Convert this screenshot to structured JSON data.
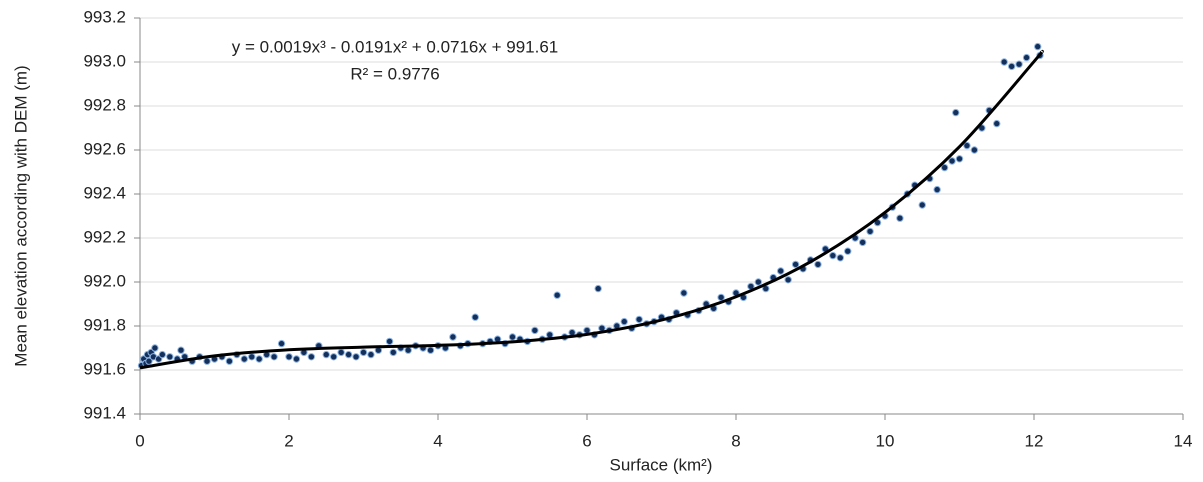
{
  "chart_data": {
    "type": "scatter",
    "xlabel": "Surface (km²)",
    "ylabel": "Mean elevation according with DEM (m)",
    "annotations": [
      "y = 0.0019x³ - 0.0191x² + 0.0716x + 991.61",
      "R² = 0.9776"
    ],
    "xlim": [
      0,
      14
    ],
    "xticks": [
      0,
      2,
      4,
      6,
      8,
      10,
      12,
      14
    ],
    "ylim": [
      991.4,
      993.2
    ],
    "yticks": [
      991.4,
      991.6,
      991.8,
      {
        "value": 992,
        "label": "992.0"
      },
      992.2,
      992.4,
      992.6,
      992.8,
      {
        "value": 993,
        "label": "993.0"
      },
      993.2
    ],
    "grid": true,
    "series": [
      {
        "type": "scatter",
        "color": "#14305a",
        "edgecolor": "#8db4e2",
        "x": [
          0.02,
          0.05,
          0.08,
          0.1,
          0.12,
          0.15,
          0.18,
          0.2,
          0.25,
          0.3,
          0.4,
          0.5,
          0.55,
          0.6,
          0.7,
          0.8,
          0.9,
          1.0,
          1.1,
          1.2,
          1.3,
          1.4,
          1.5,
          1.6,
          1.7,
          1.8,
          1.9,
          2.0,
          2.1,
          2.2,
          2.3,
          2.4,
          2.5,
          2.6,
          2.7,
          2.8,
          2.9,
          3.0,
          3.1,
          3.2,
          3.35,
          3.4,
          3.5,
          3.6,
          3.7,
          3.8,
          3.9,
          4.0,
          4.1,
          4.2,
          4.3,
          4.4,
          4.5,
          4.6,
          4.7,
          4.8,
          4.9,
          5.0,
          5.1,
          5.2,
          5.3,
          5.4,
          5.5,
          5.6,
          5.7,
          5.8,
          5.9,
          6.0,
          6.1,
          6.15,
          6.2,
          6.3,
          6.4,
          6.5,
          6.6,
          6.7,
          6.8,
          6.9,
          7.0,
          7.1,
          7.2,
          7.3,
          7.35,
          7.5,
          7.6,
          7.7,
          7.8,
          7.9,
          8.0,
          8.1,
          8.2,
          8.3,
          8.4,
          8.5,
          8.6,
          8.7,
          8.8,
          8.9,
          9.0,
          9.1,
          9.2,
          9.3,
          9.4,
          9.5,
          9.6,
          9.7,
          9.8,
          9.9,
          10.0,
          10.1,
          10.2,
          10.3,
          10.4,
          10.5,
          10.6,
          10.7,
          10.8,
          10.9,
          10.95,
          11.0,
          11.1,
          11.2,
          11.3,
          11.4,
          11.5,
          11.6,
          11.7,
          11.8,
          11.9,
          12.05,
          12.08
        ],
        "values": [
          991.62,
          991.65,
          991.63,
          991.67,
          991.64,
          991.68,
          991.66,
          991.7,
          991.65,
          991.67,
          991.66,
          991.65,
          991.69,
          991.66,
          991.64,
          991.66,
          991.64,
          991.65,
          991.66,
          991.64,
          991.67,
          991.65,
          991.66,
          991.65,
          991.67,
          991.66,
          991.72,
          991.66,
          991.65,
          991.68,
          991.66,
          991.71,
          991.67,
          991.66,
          991.68,
          991.67,
          991.66,
          991.68,
          991.67,
          991.69,
          991.73,
          991.68,
          991.7,
          991.69,
          991.71,
          991.7,
          991.69,
          991.71,
          991.7,
          991.75,
          991.71,
          991.72,
          991.84,
          991.72,
          991.73,
          991.74,
          991.72,
          991.75,
          991.74,
          991.73,
          991.78,
          991.74,
          991.76,
          991.94,
          991.75,
          991.77,
          991.76,
          991.78,
          991.76,
          991.97,
          991.79,
          991.78,
          991.8,
          991.82,
          991.79,
          991.83,
          991.81,
          991.82,
          991.84,
          991.83,
          991.86,
          991.95,
          991.85,
          991.87,
          991.9,
          991.88,
          991.93,
          991.91,
          991.95,
          991.93,
          991.98,
          992.0,
          991.97,
          992.02,
          992.05,
          992.01,
          992.08,
          992.06,
          992.1,
          992.08,
          992.15,
          992.12,
          992.11,
          992.14,
          992.2,
          992.18,
          992.23,
          992.27,
          992.3,
          992.34,
          992.29,
          992.4,
          992.44,
          992.35,
          992.47,
          992.42,
          992.52,
          992.55,
          992.77,
          992.56,
          992.62,
          992.6,
          992.7,
          992.78,
          992.72,
          993.0,
          992.98,
          992.99,
          993.02,
          993.07,
          993.03
        ]
      },
      {
        "type": "line",
        "color": "#000000",
        "x": [
          0,
          1,
          2,
          3,
          4,
          5,
          6,
          7,
          8,
          9,
          10,
          11,
          12,
          12.1
        ],
        "values": [
          991.61,
          991.664,
          991.692,
          991.704,
          991.712,
          991.728,
          991.762,
          991.827,
          991.933,
          992.092,
          992.316,
          992.615,
          993.002,
          993.046
        ]
      }
    ]
  }
}
